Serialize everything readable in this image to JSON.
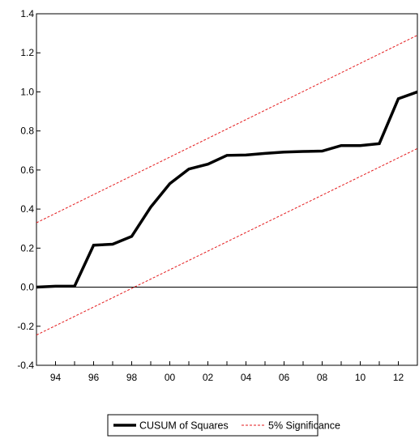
{
  "chart_data": {
    "type": "line",
    "x_range": [
      1993,
      2013
    ],
    "ylim": [
      -0.4,
      1.4
    ],
    "y_ticks": [
      "1.4",
      "1.2",
      "1.0",
      "0.8",
      "0.6",
      "0.4",
      "0.2",
      "0.0",
      "-0.2",
      "-0.4"
    ],
    "y_tick_values": [
      1.4,
      1.2,
      1.0,
      0.8,
      0.6,
      0.4,
      0.2,
      0.0,
      -0.2,
      -0.4
    ],
    "x_ticks": [
      "94",
      "96",
      "98",
      "00",
      "02",
      "04",
      "06",
      "08",
      "10",
      "12"
    ],
    "x_tick_values": [
      1994,
      1996,
      1998,
      2000,
      2002,
      2004,
      2006,
      2008,
      2010,
      2012
    ],
    "zero_line": 0.0,
    "grid": false,
    "legend_position": "bottom-center",
    "series": [
      {
        "name": "CUSUM of Squares",
        "color": "#000000",
        "style": "solid",
        "x": [
          1993,
          1994,
          1995,
          1996,
          1997,
          1998,
          1999,
          2000,
          2001,
          2002,
          2003,
          2004,
          2005,
          2006,
          2007,
          2008,
          2009,
          2010,
          2011,
          2012,
          2013
        ],
        "y": [
          0.0,
          0.005,
          0.005,
          0.215,
          0.22,
          0.26,
          0.41,
          0.53,
          0.605,
          0.63,
          0.675,
          0.677,
          0.685,
          0.692,
          0.695,
          0.697,
          0.725,
          0.725,
          0.735,
          0.965,
          1.0
        ]
      },
      {
        "name": "5% Significance",
        "color": "#e41a1c",
        "style": "dashed",
        "x": [
          1993,
          2013
        ],
        "y": [
          0.33,
          1.29
        ]
      },
      {
        "name": "5% Significance",
        "color": "#e41a1c",
        "style": "dashed",
        "x": [
          1993,
          2013
        ],
        "y": [
          -0.245,
          0.71
        ]
      }
    ]
  }
}
